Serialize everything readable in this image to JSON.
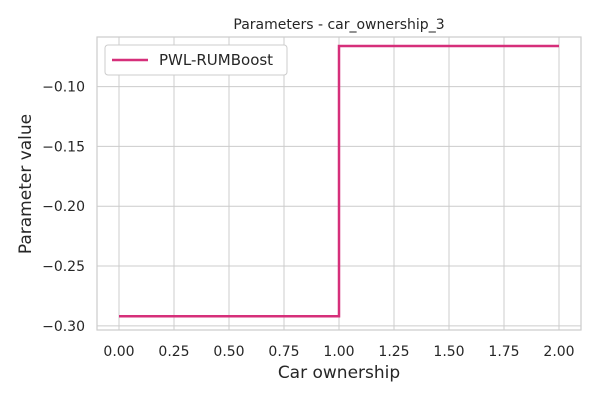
{
  "chart_data": {
    "type": "line",
    "title": "Parameters - car_ownership_3",
    "xlabel": "Car ownership",
    "ylabel": "Parameter value",
    "xlim": [
      -0.1,
      2.1
    ],
    "ylim": [
      -0.3035,
      -0.0585
    ],
    "x_ticks": [
      0.0,
      0.25,
      0.5,
      0.75,
      1.0,
      1.25,
      1.5,
      1.75,
      2.0
    ],
    "x_tick_labels": [
      "0.00",
      "0.25",
      "0.50",
      "0.75",
      "1.00",
      "1.25",
      "1.50",
      "1.75",
      "2.00"
    ],
    "y_ticks": [
      -0.3,
      -0.25,
      -0.2,
      -0.15,
      -0.1
    ],
    "y_tick_labels": [
      "−0.30",
      "−0.25",
      "−0.20",
      "−0.15",
      "−0.10"
    ],
    "grid": true,
    "legend_position": "top-left",
    "series": [
      {
        "name": "PWL-RUMBoost",
        "color": "#d62f7a",
        "x": [
          0.0,
          1.0,
          1.0,
          2.0
        ],
        "y": [
          -0.292,
          -0.292,
          -0.066,
          -0.066
        ]
      }
    ]
  }
}
